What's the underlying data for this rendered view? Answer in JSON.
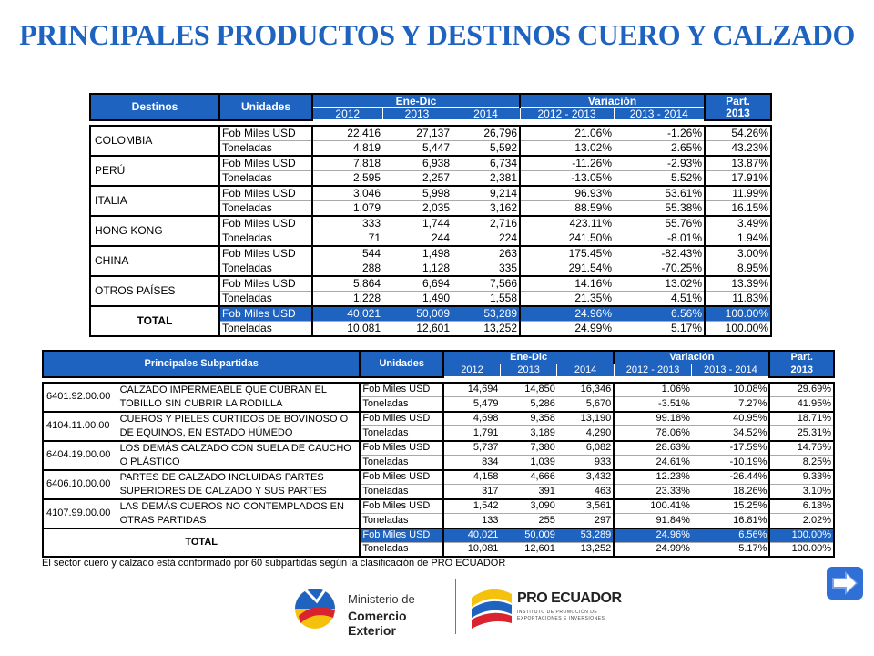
{
  "title": "PRINCIPALES PRODUCTOS Y DESTINOS CUERO Y CALZADO",
  "table1": {
    "headers": {
      "destinos": "Destinos",
      "unidades": "Unidades",
      "enedic": "Ene-Dic",
      "variacion": "Variación",
      "part_line1": "Part.",
      "part_line2": "2013"
    },
    "years": [
      "2012",
      "2013",
      "2014"
    ],
    "var_periods": [
      "2012 - 2013",
      "2013 - 2014"
    ],
    "rows": [
      {
        "name": "COLOMBIA",
        "fob": {
          "unit": "Fob Miles USD",
          "v": [
            "22,416",
            "27,137",
            "26,796",
            "21.06%",
            "-1.26%",
            "54.26%"
          ]
        },
        "ton": {
          "unit": "Toneladas",
          "v": [
            "4,819",
            "5,447",
            "5,592",
            "13.02%",
            "2.65%",
            "43.23%"
          ]
        }
      },
      {
        "name": "PERÚ",
        "fob": {
          "unit": "Fob Miles USD",
          "v": [
            "7,818",
            "6,938",
            "6,734",
            "-11.26%",
            "-2.93%",
            "13.87%"
          ]
        },
        "ton": {
          "unit": "Toneladas",
          "v": [
            "2,595",
            "2,257",
            "2,381",
            "-13.05%",
            "5.52%",
            "17.91%"
          ]
        }
      },
      {
        "name": "ITALIA",
        "fob": {
          "unit": "Fob Miles USD",
          "v": [
            "3,046",
            "5,998",
            "9,214",
            "96.93%",
            "53.61%",
            "11.99%"
          ]
        },
        "ton": {
          "unit": "Toneladas",
          "v": [
            "1,079",
            "2,035",
            "3,162",
            "88.59%",
            "55.38%",
            "16.15%"
          ]
        }
      },
      {
        "name": "HONG KONG",
        "fob": {
          "unit": "Fob Miles USD",
          "v": [
            "333",
            "1,744",
            "2,716",
            "423.11%",
            "55.76%",
            "3.49%"
          ]
        },
        "ton": {
          "unit": "Toneladas",
          "v": [
            "71",
            "244",
            "224",
            "241.50%",
            "-8.01%",
            "1.94%"
          ]
        }
      },
      {
        "name": "CHINA",
        "fob": {
          "unit": "Fob Miles USD",
          "v": [
            "544",
            "1,498",
            "263",
            "175.45%",
            "-82.43%",
            "3.00%"
          ]
        },
        "ton": {
          "unit": "Toneladas",
          "v": [
            "288",
            "1,128",
            "335",
            "291.54%",
            "-70.25%",
            "8.95%"
          ]
        }
      },
      {
        "name": "OTROS PAÍSES",
        "fob": {
          "unit": "Fob Miles USD",
          "v": [
            "5,864",
            "6,694",
            "7,566",
            "14.16%",
            "13.02%",
            "13.39%"
          ]
        },
        "ton": {
          "unit": "Toneladas",
          "v": [
            "1,228",
            "1,490",
            "1,558",
            "21.35%",
            "4.51%",
            "11.83%"
          ]
        }
      }
    ],
    "total": {
      "name": "TOTAL",
      "fob": {
        "unit": "Fob Miles USD",
        "v": [
          "40,021",
          "50,009",
          "53,289",
          "24.96%",
          "6.56%",
          "100.00%"
        ]
      },
      "ton": {
        "unit": "Toneladas",
        "v": [
          "10,081",
          "12,601",
          "13,252",
          "24.99%",
          "5.17%",
          "100.00%"
        ]
      }
    }
  },
  "table2": {
    "headers": {
      "subpartidas": "Principales Subpartidas",
      "unidades": "Unidades",
      "enedic": "Ene-Dic",
      "variacion": "Variación",
      "part_line1": "Part.",
      "part_line2": "2013"
    },
    "years": [
      "2012",
      "2013",
      "2014"
    ],
    "var_periods": [
      "2012 - 2013",
      "2013 - 2014"
    ],
    "rows": [
      {
        "code": "6401.92.00.00",
        "desc": "CALZADO IMPERMEABLE QUE CUBRAN EL TOBILLO SIN CUBRIR LA RODILLA",
        "fob": {
          "unit": "Fob Miles USD",
          "v": [
            "14,694",
            "14,850",
            "16,346",
            "1.06%",
            "10.08%",
            "29.69%"
          ]
        },
        "ton": {
          "unit": "Toneladas",
          "v": [
            "5,479",
            "5,286",
            "5,670",
            "-3.51%",
            "7.27%",
            "41.95%"
          ]
        }
      },
      {
        "code": "4104.11.00.00",
        "desc": "CUEROS Y PIELES CURTIDOS DE BOVINOSO O DE EQUINOS, EN ESTADO HÚMEDO",
        "fob": {
          "unit": "Fob Miles USD",
          "v": [
            "4,698",
            "9,358",
            "13,190",
            "99.18%",
            "40.95%",
            "18.71%"
          ]
        },
        "ton": {
          "unit": "Toneladas",
          "v": [
            "1,791",
            "3,189",
            "4,290",
            "78.06%",
            "34.52%",
            "25.31%"
          ]
        }
      },
      {
        "code": "6404.19.00.00",
        "desc": "LOS DEMÁS CALZADO CON SUELA DE CAUCHO O PLÁSTICO",
        "fob": {
          "unit": "Fob Miles USD",
          "v": [
            "5,737",
            "7,380",
            "6,082",
            "28.63%",
            "-17.59%",
            "14.76%"
          ]
        },
        "ton": {
          "unit": "Toneladas",
          "v": [
            "834",
            "1,039",
            "933",
            "24.61%",
            "-10.19%",
            "8.25%"
          ]
        }
      },
      {
        "code": "6406.10.00.00",
        "desc": "PARTES DE CALZADO INCLUIDAS PARTES SUPERIORES DE CALZADO Y SUS PARTES",
        "fob": {
          "unit": "Fob Miles USD",
          "v": [
            "4,158",
            "4,666",
            "3,432",
            "12.23%",
            "-26.44%",
            "9.33%"
          ]
        },
        "ton": {
          "unit": "Toneladas",
          "v": [
            "317",
            "391",
            "463",
            "23.33%",
            "18.26%",
            "3.10%"
          ]
        }
      },
      {
        "code": "4107.99.00.00",
        "desc": "LAS DEMÁS CUEROS NO CONTEMPLADOS EN OTRAS PARTIDAS",
        "fob": {
          "unit": "Fob Miles USD",
          "v": [
            "1,542",
            "3,090",
            "3,561",
            "100.41%",
            "15.25%",
            "6.18%"
          ]
        },
        "ton": {
          "unit": "Toneladas",
          "v": [
            "133",
            "255",
            "297",
            "91.84%",
            "16.81%",
            "2.02%"
          ]
        }
      }
    ],
    "total": {
      "name": "TOTAL",
      "fob": {
        "unit": "Fob Miles USD",
        "v": [
          "40,021",
          "50,009",
          "53,289",
          "24.96%",
          "6.56%",
          "100.00%"
        ]
      },
      "ton": {
        "unit": "Toneladas",
        "v": [
          "10,081",
          "12,601",
          "13,252",
          "24.99%",
          "5.17%",
          "100.00%"
        ]
      }
    }
  },
  "note": "El sector cuero y calzado está conformado por 60 subpartidas según la clasificación de PRO ECUADOR",
  "logos": {
    "ministerio_line1": "Ministerio de",
    "ministerio_line2": "Comercio Exterior",
    "proecuador_name": "PRO ECUADOR",
    "proecuador_tag1": "INSTITUTO DE PROMOCIÓN DE",
    "proecuador_tag2": "EXPORTACIONES E INVERSIONES"
  },
  "icons": {
    "next": "right-arrow-icon"
  },
  "colors": {
    "accent": "#1f63c1",
    "arrow": "#2f6fd6"
  }
}
